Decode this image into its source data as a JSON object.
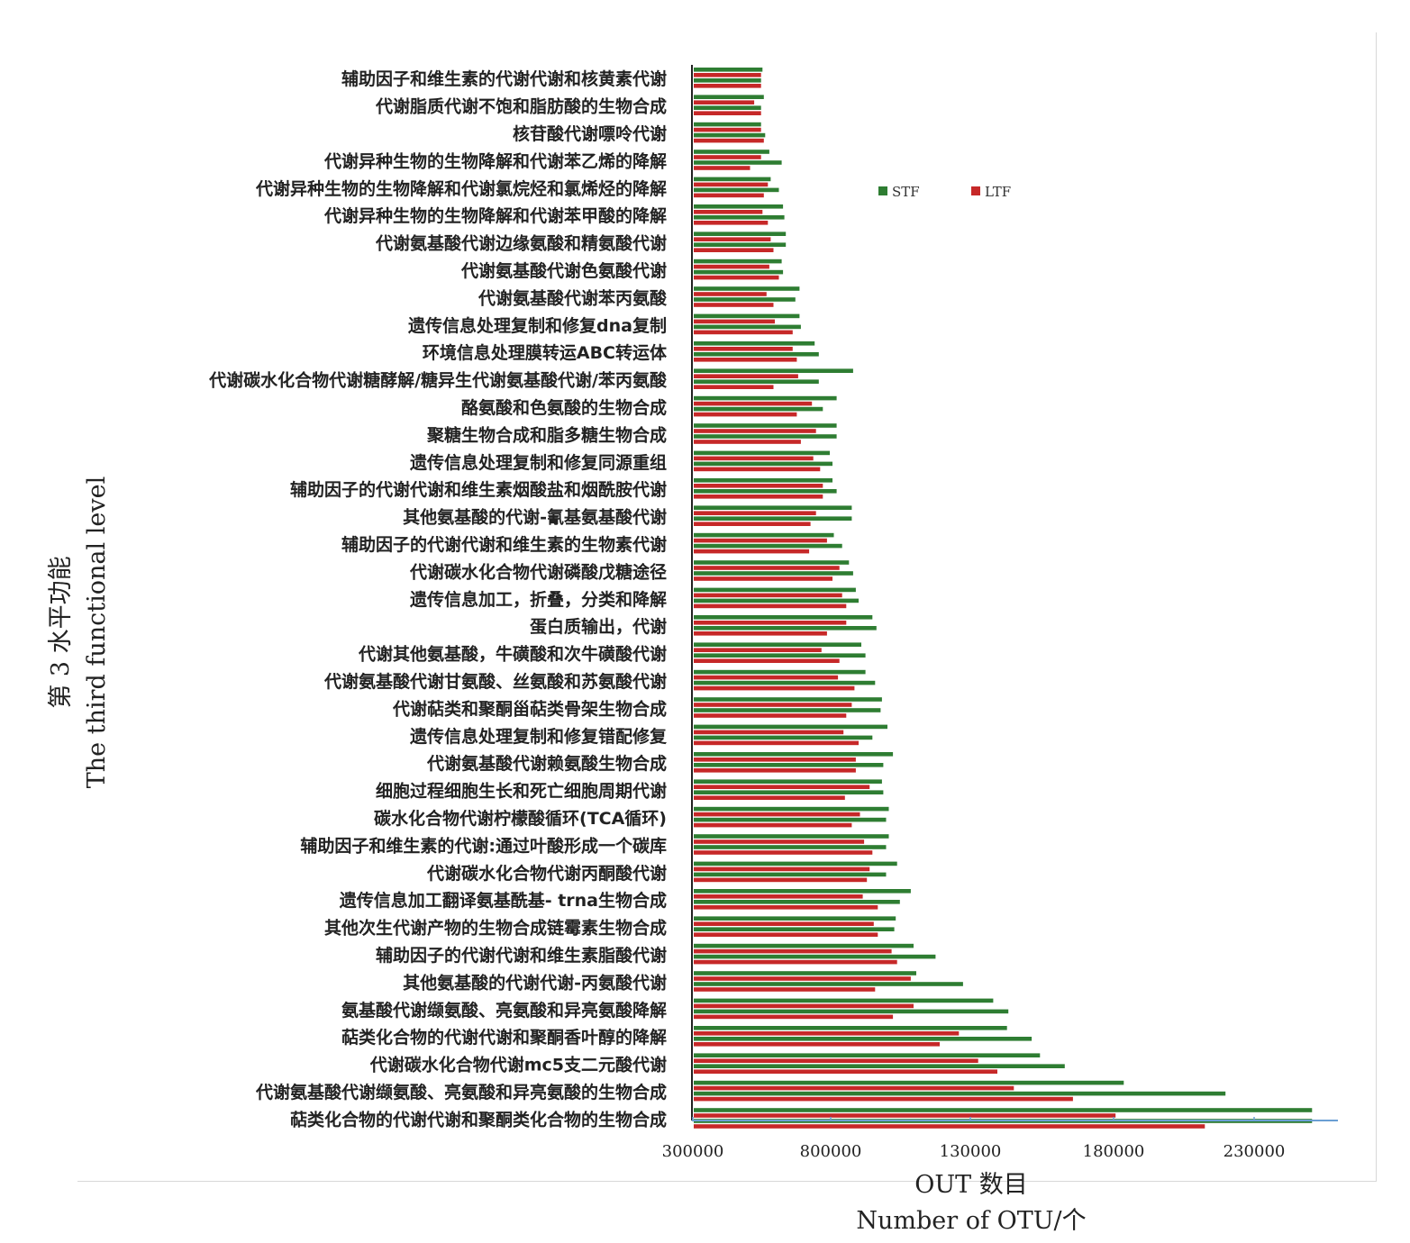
{
  "chart_data": {
    "type": "bar",
    "orientation": "horizontal",
    "ylabel": [
      "第 3 水平功能",
      "The third functional level"
    ],
    "xlabel": [
      "OUT 数目",
      "Number of OTU/个"
    ],
    "xticks": [
      "300000",
      "800000",
      "130000",
      "180000",
      "230000"
    ],
    "legend": {
      "position": "top-right",
      "items": [
        "STF",
        "LTF"
      ]
    },
    "colors": {
      "STF": "#2e7d32",
      "LTF": "#c62828",
      "axis": "#6a9fd4"
    },
    "categories": [
      "辅助因子和维生素的代谢代谢和核黄素代谢",
      "代谢脂质代谢不饱和脂肪酸的生物合成",
      "核苷酸代谢嘌呤代谢",
      "代谢异种生物的生物降解和代谢苯乙烯的降解",
      "代谢异种生物的生物降解和代谢氯烷烃和氯烯烃的降解",
      "代谢异种生物的生物降解和代谢苯甲酸的降解",
      "代谢氨基酸代谢边缘氨酸和精氨酸代谢",
      "代谢氨基酸代谢色氨酸代谢",
      "代谢氨基酸代谢苯丙氨酸",
      "遗传信息处理复制和修复dna复制",
      "环境信息处理膜转运ABC转运体",
      "代谢碳水化合物代谢糖酵解/糖异生代谢氨基酸代谢/苯丙氨酸",
      "酪氨酸和色氨酸的生物合成",
      "聚糖生物合成和脂多糖生物合成",
      "遗传信息处理复制和修复同源重组",
      "辅助因子的代谢代谢和维生素烟酸盐和烟酰胺代谢",
      "其他氨基酸的代谢-氰基氨基酸代谢",
      "辅助因子的代谢代谢和维生素的生物素代谢",
      "代谢碳水化合物代谢磷酸戊糖途径",
      "遗传信息加工，折叠，分类和降解",
      "蛋白质输出，代谢",
      "代谢其他氨基酸，牛磺酸和次牛磺酸代谢",
      "代谢氨基酸代谢甘氨酸、丝氨酸和苏氨酸代谢",
      "代谢萜类和聚酮甾萜类骨架生物合成",
      "遗传信息处理复制和修复错配修复",
      "代谢氨基酸代谢赖氨酸生物合成",
      "细胞过程细胞生长和死亡细胞周期代谢",
      "碳水化合物代谢柠檬酸循环(TCA循环)",
      "辅助因子和维生素的代谢:通过叶酸形成一个碳库",
      "代谢碳水化合物代谢丙酮酸代谢",
      "遗传信息加工翻译氨基酰基- trna生物合成",
      "其他次生代谢产物的生物合成链霉素生物合成",
      "辅助因子的代谢代谢和维生素脂酸代谢",
      "其他氨基酸的代谢代谢-丙氨酸代谢",
      "氨基酸代谢缬氨酸、亮氨酸和异亮氨酸降解",
      "萜类化合物的代谢代谢和聚酮香叶醇的降解",
      "代谢碳水化合物代谢mc5支二元酸代谢",
      "代谢氨基酸代谢缬氨酸、亮氨酸和异亮氨酸的生物合成",
      "萜类化合物的代谢代谢和聚酮类化合物的生物合成"
    ],
    "series": [
      {
        "name": "STF",
        "values": [
          [
            250000,
            245000
          ],
          [
            255000,
            245000
          ],
          [
            245000,
            260000
          ],
          [
            275000,
            320000
          ],
          [
            280000,
            310000
          ],
          [
            325000,
            330000
          ],
          [
            335000,
            335000
          ],
          [
            320000,
            325000
          ],
          [
            385000,
            370000
          ],
          [
            385000,
            390000
          ],
          [
            440000,
            455000
          ],
          [
            580000,
            455000
          ],
          [
            520000,
            470000
          ],
          [
            520000,
            520000
          ],
          [
            495000,
            505000
          ],
          [
            505000,
            520000
          ],
          [
            575000,
            575000
          ],
          [
            510000,
            540000
          ],
          [
            565000,
            580000
          ],
          [
            590000,
            600000
          ],
          [
            650000,
            665000
          ],
          [
            610000,
            625000
          ],
          [
            625000,
            660000
          ],
          [
            685000,
            680000
          ],
          [
            705000,
            650000
          ],
          [
            725000,
            690000
          ],
          [
            685000,
            690000
          ],
          [
            710000,
            700000
          ],
          [
            710000,
            700000
          ],
          [
            740000,
            700000
          ],
          [
            790000,
            750000
          ],
          [
            735000,
            730000
          ],
          [
            800000,
            880000
          ],
          [
            810000,
            980000
          ],
          [
            1090000,
            1145000
          ],
          [
            1140000,
            1230000
          ],
          [
            1260000,
            1350000
          ],
          [
            1565000,
            1935000
          ],
          [
            2250000,
            2250000
          ]
        ]
      },
      {
        "name": "LTF",
        "values": [
          [
            245000,
            245000
          ],
          [
            220000,
            245000
          ],
          [
            245000,
            255000
          ],
          [
            245000,
            205000
          ],
          [
            270000,
            255000
          ],
          [
            250000,
            270000
          ],
          [
            280000,
            290000
          ],
          [
            275000,
            310000
          ],
          [
            265000,
            290000
          ],
          [
            295000,
            360000
          ],
          [
            360000,
            375000
          ],
          [
            380000,
            290000
          ],
          [
            430000,
            375000
          ],
          [
            445000,
            390000
          ],
          [
            435000,
            460000
          ],
          [
            470000,
            470000
          ],
          [
            445000,
            425000
          ],
          [
            485000,
            420000
          ],
          [
            530000,
            505000
          ],
          [
            540000,
            555000
          ],
          [
            555000,
            485000
          ],
          [
            465000,
            530000
          ],
          [
            525000,
            585000
          ],
          [
            575000,
            555000
          ],
          [
            545000,
            600000
          ],
          [
            590000,
            590000
          ],
          [
            640000,
            550000
          ],
          [
            605000,
            575000
          ],
          [
            620000,
            650000
          ],
          [
            640000,
            630000
          ],
          [
            615000,
            670000
          ],
          [
            655000,
            670000
          ],
          [
            720000,
            740000
          ],
          [
            790000,
            660000
          ],
          [
            800000,
            725000
          ],
          [
            965000,
            895000
          ],
          [
            1035000,
            1105000
          ],
          [
            1165000,
            1380000
          ],
          [
            1535000,
            1860000
          ]
        ]
      }
    ]
  }
}
